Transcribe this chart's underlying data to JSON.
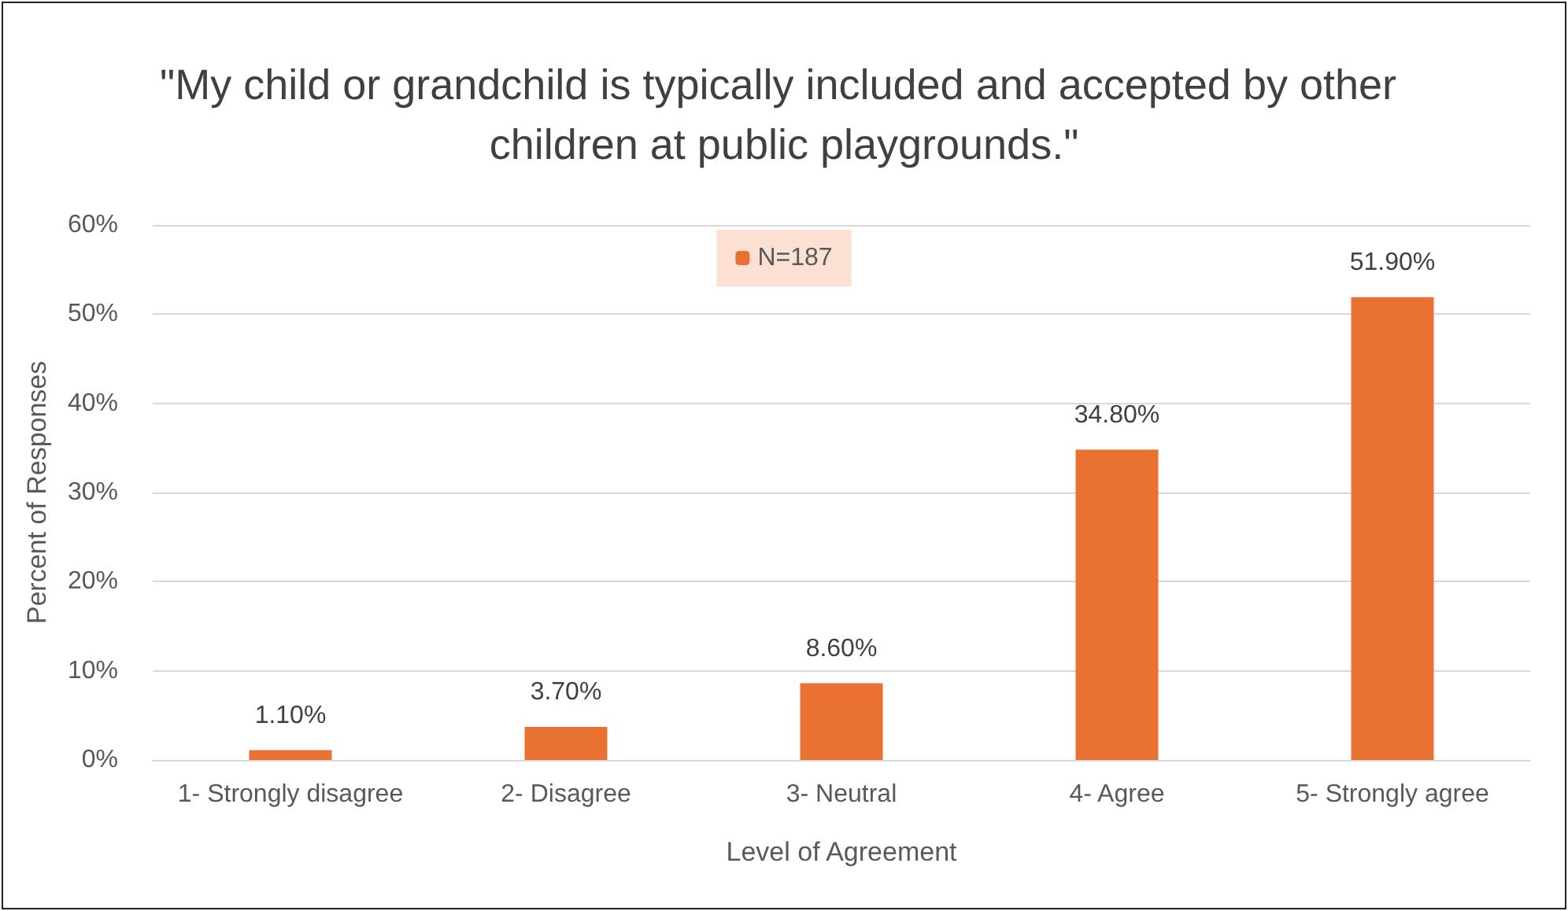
{
  "chart_data": {
    "type": "bar",
    "title": "\"My child or grandchild is typically included and accepted by other children at public playgrounds.\"",
    "xlabel": "Level of Agreement",
    "ylabel": "Percent of Responses",
    "categories": [
      "1- Strongly disagree",
      "2- Disagree",
      "3- Neutral",
      "4- Agree",
      "5- Strongly agree"
    ],
    "series": [
      {
        "name": "N=187",
        "color": "#e97132",
        "values": [
          1.1,
          3.7,
          8.6,
          34.8,
          51.9
        ],
        "value_labels": [
          "1.10%",
          "3.70%",
          "8.60%",
          "34.80%",
          "51.90%"
        ]
      }
    ],
    "ylim": [
      0,
      60
    ],
    "yticks": [
      {
        "value": 0,
        "label": "0%"
      },
      {
        "value": 10,
        "label": "10%"
      },
      {
        "value": 20,
        "label": "20%"
      },
      {
        "value": 30,
        "label": "30%"
      },
      {
        "value": 40,
        "label": "40%"
      },
      {
        "value": 50,
        "label": "50%"
      },
      {
        "value": 60,
        "label": "60%"
      }
    ],
    "grid": "y",
    "legend": "top"
  }
}
